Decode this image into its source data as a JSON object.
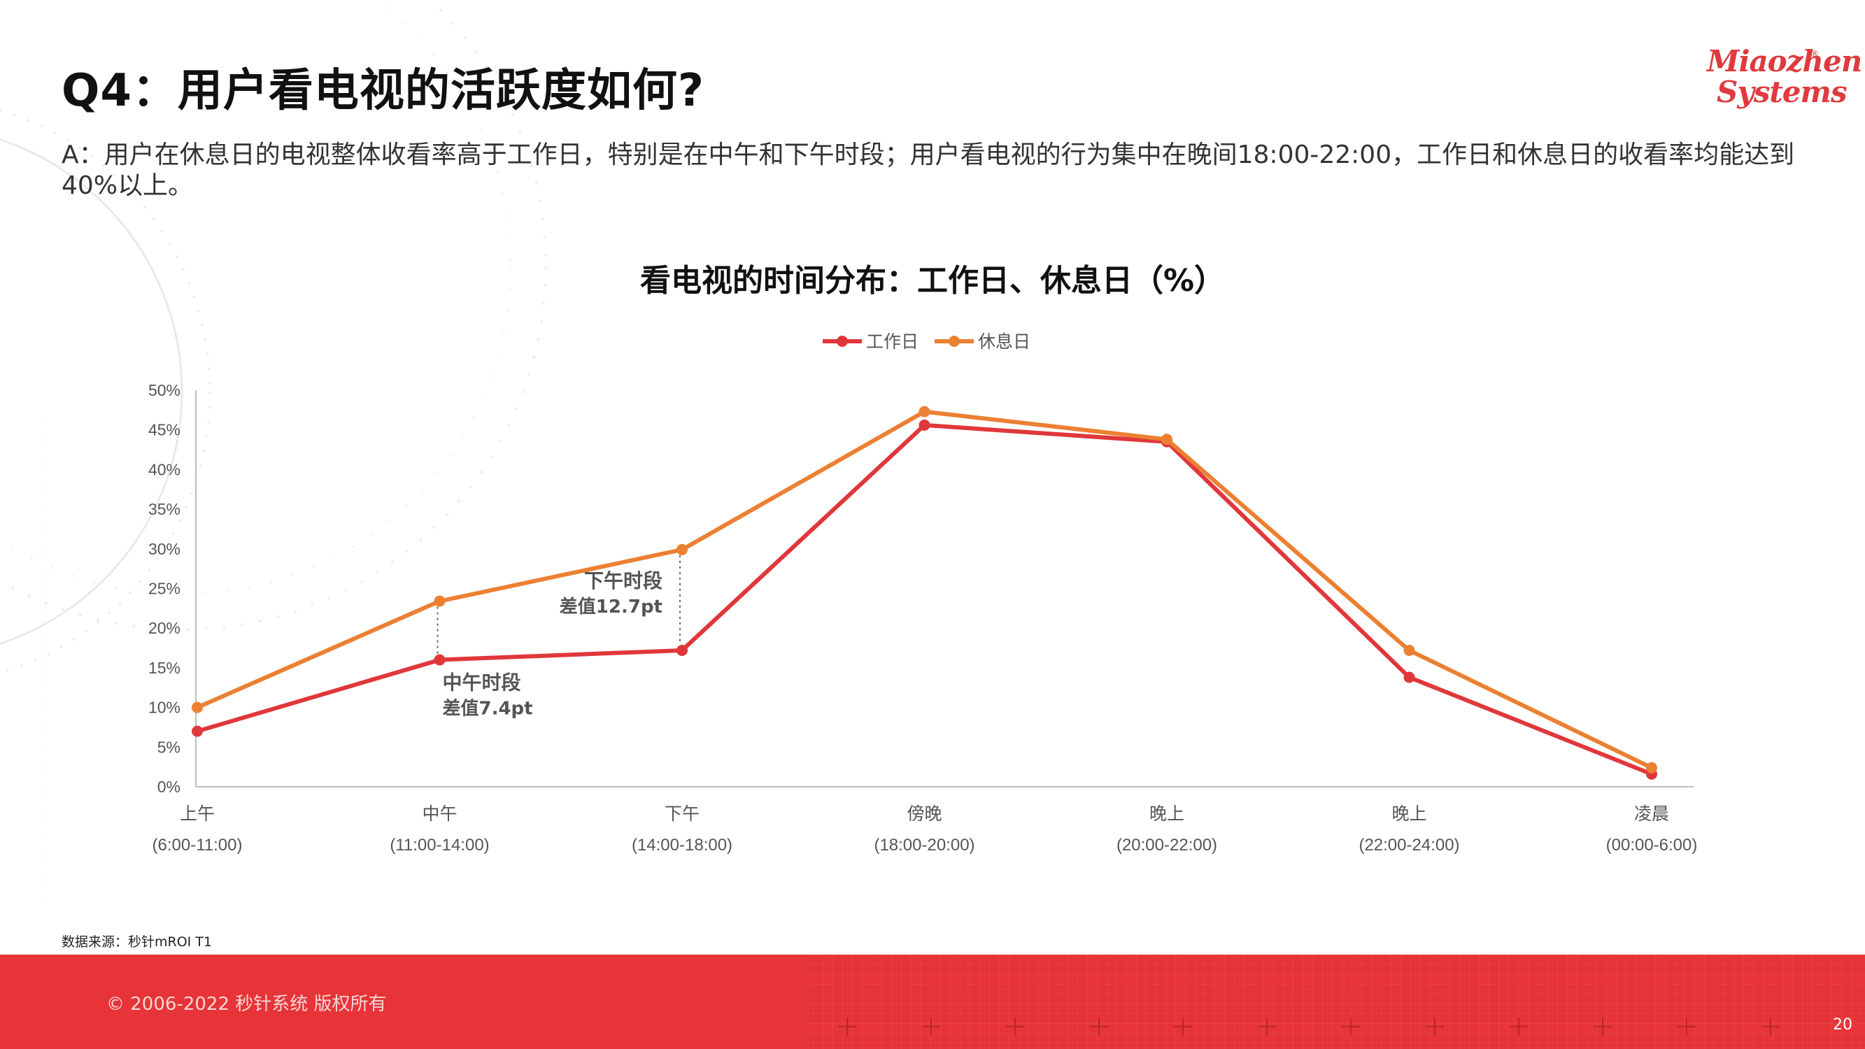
{
  "header": {
    "title": "Q4：用户看电视的活跃度如何?",
    "subtitle": "A：用户在休息日的电视整体收看率高于工作日，特别是在中午和下午时段；用户看电视的行为集中在晚间18:00-22:00，工作日和休息日的收看率均能达到40%以上。"
  },
  "logo": {
    "line1": "Miaozhen",
    "line2": "Systems",
    "reg": "®"
  },
  "chart_data": {
    "type": "line",
    "title": "看电视的时间分布：工作日、休息日（%）",
    "categories": [
      "上午",
      "中午",
      "下午",
      "傍晚",
      "晚上",
      "晚上",
      "凌晨"
    ],
    "category_ranges": [
      "(6:00-11:00)",
      "(11:00-14:00)",
      "(14:00-18:00)",
      "(18:00-20:00)",
      "(20:00-22:00)",
      "(22:00-24:00)",
      "(00:00-6:00)"
    ],
    "y_ticks": [
      "0%",
      "5%",
      "10%",
      "15%",
      "20%",
      "25%",
      "30%",
      "35%",
      "40%",
      "45%",
      "50%"
    ],
    "ylim": [
      0,
      50
    ],
    "legend_position": "top-center",
    "grid": false,
    "series": [
      {
        "name": "工作日",
        "color": "#e0373b",
        "values": [
          7.0,
          16.0,
          17.2,
          45.6,
          43.5,
          13.8,
          1.6
        ]
      },
      {
        "name": "休息日",
        "color": "#ec8032",
        "values": [
          10.0,
          23.4,
          29.9,
          47.3,
          43.8,
          17.2,
          2.4
        ]
      }
    ],
    "annotations": [
      {
        "category_index": 1,
        "line1": "中午时段",
        "line2": "差值7.4pt",
        "placement": "below"
      },
      {
        "category_index": 2,
        "line1": "下午时段",
        "line2": "差值12.7pt",
        "placement": "left"
      }
    ]
  },
  "source": "数据来源：秒针mROI T1",
  "footer": {
    "copyright": "© 2006-2022 秒针系统 版权所有",
    "page_number": "20"
  },
  "colors": {
    "brand_red": "#e63438",
    "accent_orange": "#ec8032"
  }
}
